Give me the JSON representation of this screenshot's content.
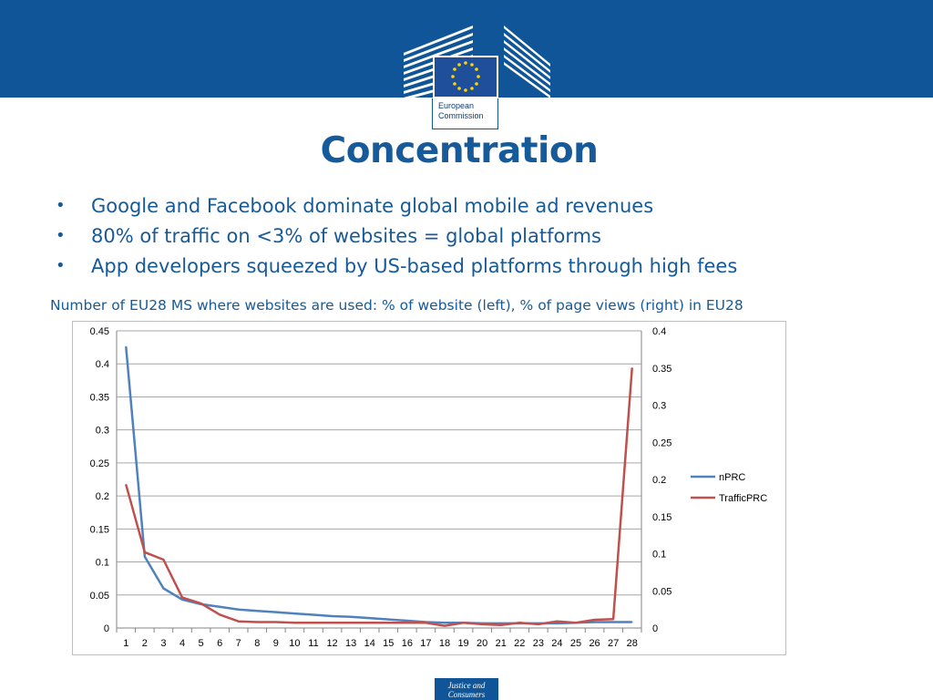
{
  "header": {
    "logo_line1": "European",
    "logo_line2": "Commission",
    "brand_color": "#0f5597"
  },
  "title": "Concentration",
  "bullets": [
    "Google and Facebook dominate global mobile ad revenues",
    "80% of traffic on <3% of websites = global platforms",
    "App developers squeezed by US-based platforms through high fees"
  ],
  "chart_caption": "Number of EU28 MS where websites are used: % of website (left), % of page views (right) in EU28",
  "chart_data": {
    "type": "line",
    "categories": [
      1,
      2,
      3,
      4,
      5,
      6,
      7,
      8,
      9,
      10,
      11,
      12,
      13,
      14,
      15,
      16,
      17,
      18,
      19,
      20,
      21,
      22,
      23,
      24,
      25,
      26,
      27,
      28
    ],
    "series": [
      {
        "name": "nPRC",
        "axis": "left",
        "color": "#4f81bd",
        "values": [
          0.426,
          0.108,
          0.06,
          0.043,
          0.036,
          0.032,
          0.028,
          0.026,
          0.024,
          0.022,
          0.02,
          0.018,
          0.017,
          0.015,
          0.013,
          0.011,
          0.009,
          0.008,
          0.008,
          0.007,
          0.007,
          0.007,
          0.007,
          0.007,
          0.008,
          0.009,
          0.009,
          0.009
        ]
      },
      {
        "name": "TrafficPRC",
        "axis": "right",
        "color": "#c0504d",
        "values": [
          0.193,
          0.102,
          0.092,
          0.041,
          0.033,
          0.018,
          0.009,
          0.008,
          0.008,
          0.007,
          0.007,
          0.007,
          0.007,
          0.007,
          0.007,
          0.007,
          0.007,
          0.003,
          0.007,
          0.005,
          0.004,
          0.007,
          0.005,
          0.009,
          0.007,
          0.011,
          0.012,
          0.35
        ]
      }
    ],
    "y_left": {
      "min": 0,
      "max": 0.45,
      "ticks": [
        "0",
        "0.05",
        "0.1",
        "0.15",
        "0.2",
        "0.25",
        "0.3",
        "0.35",
        "0.4",
        "0.45"
      ]
    },
    "y_right": {
      "min": 0,
      "max": 0.4,
      "ticks": [
        "0",
        "0.05",
        "0.1",
        "0.15",
        "0.2",
        "0.25",
        "0.3",
        "0.35",
        "0.4"
      ]
    },
    "grid": true,
    "legend_position": "right"
  },
  "footer": {
    "badge_line1": "Justice and",
    "badge_line2": "Consumers"
  }
}
